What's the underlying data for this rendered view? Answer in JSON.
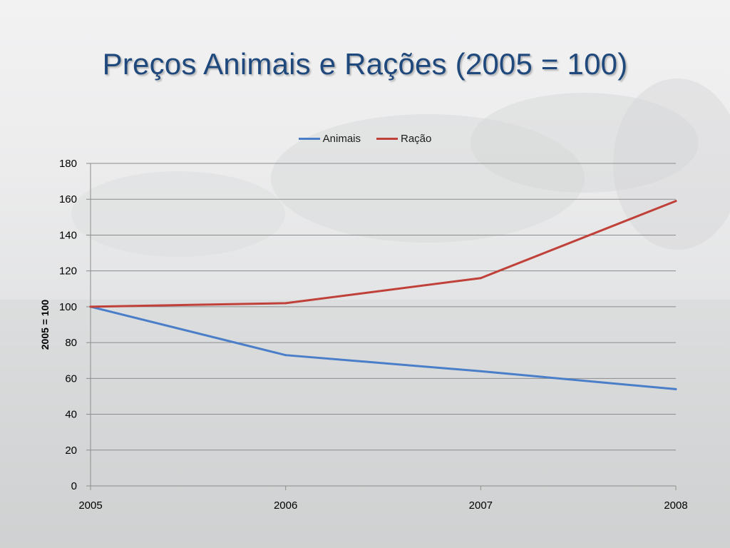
{
  "slide": {
    "title": "Preços Animais e Rações (2005 = 100)"
  },
  "colors": {
    "title": "#1f497d",
    "animais": "#4a7ec8",
    "racao": "#c0403a",
    "grid": "#8c8c8c"
  },
  "chart_data": {
    "type": "line",
    "x": [
      2005,
      2006,
      2007,
      2008
    ],
    "categories": [
      "2005",
      "2006",
      "2007",
      "2008"
    ],
    "series": [
      {
        "name": "Animais",
        "values": [
          100,
          73,
          64,
          54
        ]
      },
      {
        "name": "Ração",
        "values": [
          100,
          102,
          116,
          159
        ]
      }
    ],
    "xlabel": "",
    "ylabel": "2005 = 100",
    "ylim": [
      0,
      180
    ],
    "yticks": [
      0,
      20,
      40,
      60,
      80,
      100,
      120,
      140,
      160,
      180
    ],
    "grid": true,
    "legend_position": "top"
  }
}
